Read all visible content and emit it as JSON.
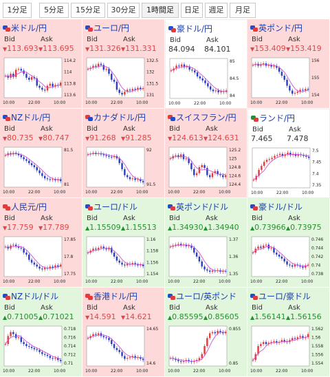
{
  "tabs": [
    {
      "label": "1分足"
    },
    {
      "label": "5分足"
    },
    {
      "label": "15分足"
    },
    {
      "label": "30分足"
    },
    {
      "label": "1時間足",
      "active": true
    },
    {
      "label": "日足"
    },
    {
      "label": "週足"
    },
    {
      "label": "月足"
    }
  ],
  "colors": {
    "negative_bg": "#fdd9da",
    "positive_bg": "#e2f6dd",
    "candle_up": "#e23b3b",
    "candle_down": "#2c3fc2",
    "ma_line": "#d14fd1"
  },
  "labels": {
    "bid": "Bid",
    "ask": "Ask"
  },
  "tiles": [
    {
      "pair": "米ドル/円",
      "flag": [
        "#1e4fc8",
        "#e23b3b"
      ],
      "trend": "down",
      "bid": "113.693",
      "ask": "113.695",
      "ticks": [
        "114.2",
        "114",
        "113.8",
        "113.6"
      ],
      "times": [
        "10:00",
        "22:00",
        "10:00"
      ],
      "series": [
        0.55,
        0.5,
        0.6,
        0.52,
        0.7,
        0.72,
        0.68,
        0.6,
        0.5,
        0.45,
        0.52,
        0.48,
        0.3,
        0.25,
        0.2,
        0.18,
        0.3,
        0.35,
        0.28,
        0.32,
        0.3,
        0.38
      ]
    },
    {
      "pair": "ユーロ/円",
      "flag": [
        "#1e4fc8",
        "#e23b3b"
      ],
      "trend": "down",
      "bid": "131.326",
      "ask": "131.331",
      "ticks": [
        "132.5",
        "132",
        "131.5",
        "131"
      ],
      "times": [
        "10:00",
        "22:00",
        "10:00"
      ],
      "series": [
        0.72,
        0.75,
        0.8,
        0.78,
        0.85,
        0.82,
        0.7,
        0.72,
        0.6,
        0.45,
        0.4,
        0.2,
        0.12,
        0.08,
        0.15,
        0.2,
        0.18,
        0.22,
        0.2,
        0.25,
        0.22,
        0.24
      ]
    },
    {
      "pair": "豪ドル/円",
      "flag": [
        "#1e4fc8",
        "#e23b3b"
      ],
      "trend": "flat",
      "bid": "84.094",
      "ask": "84.101",
      "ticks": [
        "85",
        "84.5",
        "84"
      ],
      "times": [
        "10:00",
        "22:00",
        "10:00"
      ],
      "series": [
        0.7,
        0.75,
        0.82,
        0.8,
        0.85,
        0.78,
        0.8,
        0.72,
        0.7,
        0.65,
        0.55,
        0.5,
        0.45,
        0.38,
        0.3,
        0.22,
        0.18,
        0.2,
        0.15,
        0.18,
        0.16,
        0.2
      ]
    },
    {
      "pair": "英ポンド/円",
      "flag": [
        "#1e4fc8",
        "#e23b3b"
      ],
      "trend": "down",
      "bid": "153.409",
      "ask": "153.419",
      "ticks": [
        "156",
        "155",
        "154"
      ],
      "times": [
        "10:00",
        "22:00",
        "10:00"
      ],
      "series": [
        0.82,
        0.85,
        0.8,
        0.84,
        0.86,
        0.8,
        0.82,
        0.78,
        0.8,
        0.75,
        0.65,
        0.55,
        0.45,
        0.3,
        0.18,
        0.1,
        0.12,
        0.15,
        0.2,
        0.18,
        0.22,
        0.2
      ]
    },
    {
      "pair": "NZドル/円",
      "flag": [
        "#1e4fc8",
        "#e23b3b"
      ],
      "trend": "down",
      "bid": "80.735",
      "ask": "80.747",
      "ticks": [
        "81.5",
        "81"
      ],
      "times": [
        "10:00",
        "22:00",
        "10:00"
      ],
      "series": [
        0.8,
        0.85,
        0.82,
        0.86,
        0.84,
        0.8,
        0.75,
        0.7,
        0.66,
        0.6,
        0.55,
        0.5,
        0.42,
        0.35,
        0.28,
        0.22,
        0.2,
        0.18,
        0.2,
        0.17,
        0.2,
        0.15
      ]
    },
    {
      "pair": "カナダドル/円",
      "flag": [
        "#e23b3b",
        "#1e4fc8"
      ],
      "trend": "down",
      "bid": "91.268",
      "ask": "91.285",
      "ticks": [
        "92",
        "91.5"
      ],
      "times": [
        "10:00",
        "22:00",
        "10:00"
      ],
      "series": [
        0.82,
        0.84,
        0.86,
        0.83,
        0.85,
        0.82,
        0.8,
        0.78,
        0.76,
        0.75,
        0.78,
        0.72,
        0.6,
        0.45,
        0.3,
        0.25,
        0.2,
        0.22,
        0.18,
        0.2,
        0.15,
        0.12
      ]
    },
    {
      "pair": "スイスフラン/円",
      "flag": [
        "#e23b3b",
        "#1e4fc8"
      ],
      "trend": "down",
      "bid": "124.613",
      "ask": "124.631",
      "ticks": [
        "125.2",
        "125",
        "124.8",
        "124.6",
        "124.4"
      ],
      "times": [
        "10:00",
        "22:00",
        "10:00"
      ],
      "series": [
        0.72,
        0.78,
        0.8,
        0.75,
        0.82,
        0.7,
        0.72,
        0.6,
        0.45,
        0.3,
        0.35,
        0.5,
        0.55,
        0.48,
        0.3,
        0.25,
        0.35,
        0.4,
        0.32,
        0.3,
        0.25,
        0.3
      ]
    },
    {
      "pair": "ランド/円",
      "flag": [
        "#23912d",
        "#e23b3b"
      ],
      "trend": "flat",
      "bid": "7.465",
      "ask": "7.478",
      "ticks": [
        "7.5",
        "7.45",
        "7.4",
        "7.35"
      ],
      "times": [
        "10:00",
        "22:00",
        "10:00"
      ],
      "series": [
        0.2,
        0.3,
        0.45,
        0.55,
        0.65,
        0.7,
        0.72,
        0.75,
        0.8,
        0.82,
        0.85,
        0.8,
        0.84,
        0.88,
        0.82,
        0.85,
        0.8,
        0.84,
        0.82,
        0.8,
        0.78,
        0.75
      ]
    },
    {
      "pair": "人民元/円",
      "flag": [
        "#e23b3b",
        "#e23b3b"
      ],
      "trend": "down",
      "bid": "17.759",
      "ask": "17.789",
      "ticks": [
        "17.85",
        "17.8",
        "17.75"
      ],
      "times": [
        "10:00",
        "22:00",
        "10:00"
      ],
      "series": [
        0.75,
        0.7,
        0.78,
        0.8,
        0.76,
        0.72,
        0.7,
        0.6,
        0.55,
        0.42,
        0.35,
        0.3,
        0.25,
        0.2,
        0.18,
        0.22,
        0.2,
        0.25,
        0.22,
        0.28,
        0.25,
        0.3
      ]
    },
    {
      "pair": "ユーロ/ドル",
      "flag": [
        "#1e4fc8",
        "#e23b3b"
      ],
      "trend": "up",
      "bid": "1.15509",
      "ask": "1.15513",
      "ticks": [
        "1.16",
        "1.158",
        "1.156",
        "1.154"
      ],
      "times": [
        "10:00",
        "22:00",
        "10:00"
      ],
      "series": [
        0.6,
        0.65,
        0.7,
        0.68,
        0.72,
        0.75,
        0.7,
        0.68,
        0.72,
        0.6,
        0.5,
        0.4,
        0.35,
        0.3,
        0.28,
        0.32,
        0.3,
        0.34,
        0.3,
        0.28,
        0.3,
        0.26
      ]
    },
    {
      "pair": "英ポンド/ドル",
      "flag": [
        "#1e4fc8",
        "#e23b3b"
      ],
      "trend": "up",
      "bid": "1.34930",
      "ask": "1.34940",
      "ticks": [
        "1.37",
        "1.36",
        "1.35"
      ],
      "times": [
        "10:00",
        "22:00",
        "10:00"
      ],
      "series": [
        0.75,
        0.78,
        0.8,
        0.82,
        0.78,
        0.8,
        0.76,
        0.78,
        0.72,
        0.6,
        0.5,
        0.38,
        0.25,
        0.18,
        0.15,
        0.12,
        0.15,
        0.14,
        0.16,
        0.12,
        0.14,
        0.13
      ]
    },
    {
      "pair": "豪ドル/ドル",
      "flag": [
        "#1e4fc8",
        "#e23b3b"
      ],
      "trend": "up",
      "bid": "0.73966",
      "ask": "0.73975",
      "ticks": [
        "0.746",
        "0.744",
        "0.742",
        "0.74",
        "0.738"
      ],
      "times": [
        "10:00",
        "22:00",
        "10:00"
      ],
      "series": [
        0.6,
        0.7,
        0.75,
        0.72,
        0.78,
        0.8,
        0.7,
        0.72,
        0.6,
        0.55,
        0.5,
        0.45,
        0.38,
        0.3,
        0.28,
        0.25,
        0.3,
        0.28,
        0.25,
        0.22,
        0.28,
        0.3
      ]
    },
    {
      "pair": "NZドル/ドル",
      "flag": [
        "#1e4fc8",
        "#e23b3b"
      ],
      "trend": "up",
      "bid": "0.71005",
      "ask": "0.71021",
      "ticks": [
        "0.718",
        "0.716",
        "0.714",
        "0.712",
        "0.71"
      ],
      "times": [
        "10:00",
        "22:00",
        "10:00"
      ],
      "series": [
        0.55,
        0.75,
        0.85,
        0.8,
        0.7,
        0.72,
        0.6,
        0.55,
        0.5,
        0.48,
        0.45,
        0.42,
        0.4,
        0.35,
        0.3,
        0.28,
        0.25,
        0.2,
        0.18,
        0.2,
        0.15,
        0.12
      ]
    },
    {
      "pair": "香港ドル/円",
      "flag": [
        "#e23b3b",
        "#e23b3b"
      ],
      "trend": "down",
      "bid": "14.591",
      "ask": "14.621",
      "ticks": [
        "14.65",
        "14.6"
      ],
      "times": [
        "10:00",
        "22:00",
        "10:00"
      ],
      "series": [
        0.7,
        0.75,
        0.8,
        0.78,
        0.82,
        0.75,
        0.72,
        0.7,
        0.65,
        0.55,
        0.45,
        0.4,
        0.35,
        0.25,
        0.18,
        0.2,
        0.22,
        0.25,
        0.2,
        0.22,
        0.18,
        0.15
      ]
    },
    {
      "pair": "ユーロ/英ポンド",
      "flag": [
        "#1e4fc8",
        "#e23b3b"
      ],
      "trend": "up",
      "bid": "0.85595",
      "ask": "0.85605",
      "ticks": [
        "0.855",
        "0.85"
      ],
      "times": [
        "10:00",
        "22:00",
        "10:00"
      ],
      "series": [
        0.2,
        0.18,
        0.15,
        0.12,
        0.1,
        0.12,
        0.15,
        0.12,
        0.1,
        0.12,
        0.15,
        0.2,
        0.3,
        0.5,
        0.7,
        0.82,
        0.85,
        0.82,
        0.88,
        0.85,
        0.82,
        0.86
      ]
    },
    {
      "pair": "ユーロ/豪ドル",
      "flag": [
        "#1e4fc8",
        "#e23b3b"
      ],
      "trend": "up",
      "bid": "1.56141",
      "ask": "1.56156",
      "ticks": [
        "1.562",
        "1.56",
        "1.558",
        "1.556",
        "1.554"
      ],
      "times": [
        "10:00",
        "22:00",
        "10:00"
      ],
      "series": [
        0.15,
        0.3,
        0.5,
        0.55,
        0.6,
        0.55,
        0.58,
        0.6,
        0.62,
        0.58,
        0.6,
        0.65,
        0.62,
        0.6,
        0.65,
        0.7,
        0.68,
        0.72,
        0.75,
        0.7,
        0.72,
        0.8
      ]
    }
  ]
}
